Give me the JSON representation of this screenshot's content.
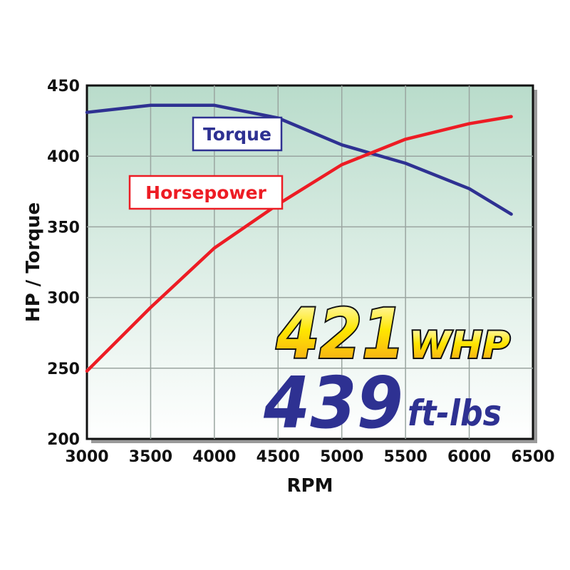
{
  "chart_data": {
    "type": "line",
    "title": "",
    "xlabel": "RPM",
    "ylabel": "HP / Torque",
    "xlim": [
      3000,
      6500
    ],
    "ylim": [
      200,
      450
    ],
    "xticks": [
      3000,
      3500,
      4000,
      4500,
      5000,
      5500,
      6000,
      6500
    ],
    "yticks": [
      200,
      250,
      300,
      350,
      400,
      450
    ],
    "grid": true,
    "series": [
      {
        "name": "Torque",
        "color": "#2e3192",
        "x": [
          3000,
          3500,
          4000,
          4500,
          5000,
          5500,
          6000,
          6330
        ],
        "y": [
          431,
          436,
          436,
          427,
          408,
          395,
          377,
          359
        ]
      },
      {
        "name": "Horsepower",
        "color": "#ed1c24",
        "x": [
          3000,
          3500,
          4000,
          4500,
          5000,
          5500,
          6000,
          6330
        ],
        "y": [
          248,
          293,
          335,
          366,
          394,
          412,
          423,
          428
        ]
      }
    ],
    "annotations": {
      "hp_value": "421",
      "hp_unit": "WHP",
      "tq_value": "439",
      "tq_unit": "ft-lbs"
    },
    "background_gradient": [
      "#b9dccb",
      "#ffffff"
    ]
  }
}
